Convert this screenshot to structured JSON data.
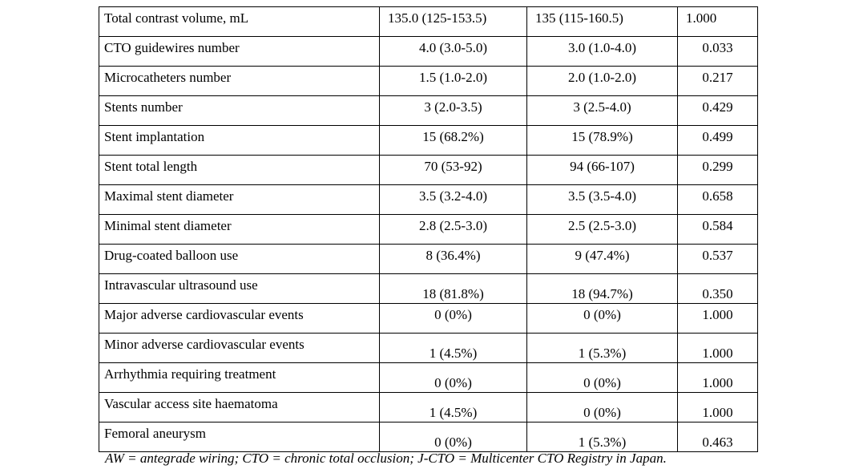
{
  "table": {
    "rows": [
      {
        "cells": [
          "Total contrast volume, mL",
          "135.0 (125-153.5)",
          "135 (115-160.5)",
          "1.000"
        ],
        "align": "left",
        "value_position": "top"
      },
      {
        "cells": [
          "CTO guidewires number",
          "4.0 (3.0-5.0)",
          "3.0 (1.0-4.0)",
          "0.033"
        ],
        "align": "center",
        "value_position": "top"
      },
      {
        "cells": [
          "Microcatheters number",
          "1.5 (1.0-2.0)",
          "2.0 (1.0-2.0)",
          "0.217"
        ],
        "align": "center",
        "value_position": "top"
      },
      {
        "cells": [
          "Stents number",
          "3 (2.0-3.5)",
          "3 (2.5-4.0)",
          "0.429"
        ],
        "align": "center",
        "value_position": "top"
      },
      {
        "cells": [
          "Stent implantation",
          "15 (68.2%)",
          "15 (78.9%)",
          "0.499"
        ],
        "align": "center",
        "value_position": "top"
      },
      {
        "cells": [
          "Stent total length",
          "70 (53-92)",
          "94 (66-107)",
          "0.299"
        ],
        "align": "center",
        "value_position": "top"
      },
      {
        "cells": [
          "Maximal stent diameter",
          "3.5 (3.2-4.0)",
          "3.5 (3.5-4.0)",
          "0.658"
        ],
        "align": "center",
        "value_position": "top"
      },
      {
        "cells": [
          "Minimal stent diameter",
          "2.8 (2.5-3.0)",
          "2.5 (2.5-3.0)",
          "0.584"
        ],
        "align": "center",
        "value_position": "top"
      },
      {
        "cells": [
          "Drug-coated balloon use",
          "8 (36.4%)",
          "9 (47.4%)",
          "0.537"
        ],
        "align": "center",
        "value_position": "top"
      },
      {
        "cells": [
          "Intravascular ultrasound use",
          "18 (81.8%)",
          "18 (94.7%)",
          "0.350"
        ],
        "align": "center",
        "value_position": "bottom"
      },
      {
        "cells": [
          "Major adverse cardiovascular events",
          "0 (0%)",
          "0 (0%)",
          "1.000"
        ],
        "align": "center",
        "value_position": "top"
      },
      {
        "cells": [
          "Minor adverse cardiovascular events",
          "1 (4.5%)",
          "1 (5.3%)",
          "1.000"
        ],
        "align": "center",
        "value_position": "bottom"
      },
      {
        "cells": [
          "Arrhythmia requiring treatment",
          "0 (0%)",
          "0 (0%)",
          "1.000"
        ],
        "align": "center",
        "value_position": "bottom"
      },
      {
        "cells": [
          "Vascular access site haematoma",
          "1 (4.5%)",
          "0 (0%)",
          "1.000"
        ],
        "align": "center",
        "value_position": "bottom"
      },
      {
        "cells": [
          "Femoral aneurysm",
          "0 (0%)",
          "1 (5.3%)",
          "0.463"
        ],
        "align": "center",
        "value_position": "bottom"
      }
    ]
  },
  "footnote": "AW = antegrade wiring; CTO = chronic total occlusion; J-CTO = Multicenter CTO Registry in Japan."
}
